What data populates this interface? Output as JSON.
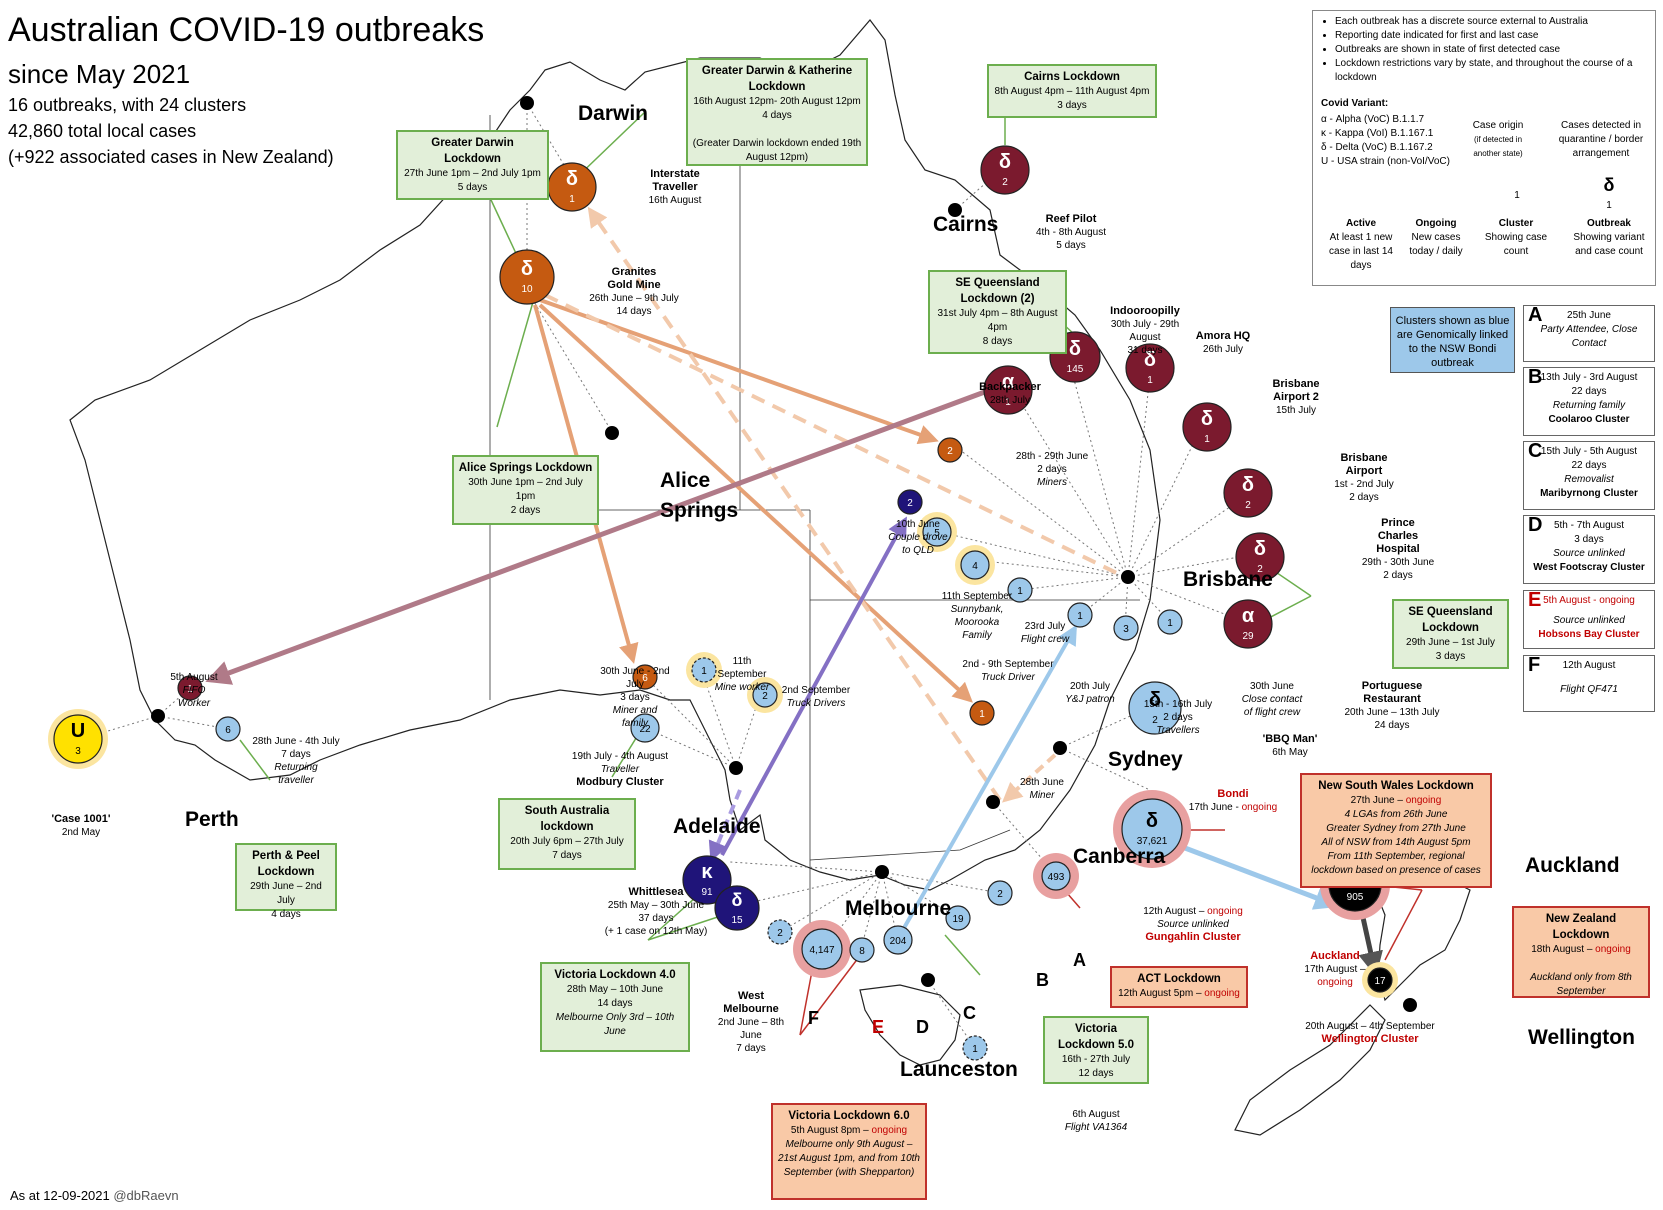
{
  "header": {
    "title_line1": "Australian COVID-19 outbreaks",
    "title_line2": "since May 2021",
    "stat1": "16 outbreaks, with 24 clusters",
    "stat2": "42,860 total local cases",
    "stat3": "(+922 associated cases in New Zealand)"
  },
  "footer": {
    "date": "As at 12-09-2021",
    "handle": "@dbRaevn"
  },
  "legend": {
    "bullets": [
      "Each outbreak has a discrete source external to Australia",
      "Reporting date indicated for first and last case",
      "Outbreaks are shown in state of first detected case",
      "Lockdown restrictions vary by state, and throughout the course of a lockdown"
    ],
    "variant_title": "Covid Variant:",
    "variants": [
      "α - Alpha (VoC) B.1.1.7",
      "κ - Kappa (VoI) B.1.167.1",
      "δ - Delta (VoC) B.1.167.2",
      "U - USA strain (non-VoI/VoC)"
    ],
    "case_origin": "Case origin",
    "case_origin_note": "(if detected in another state)",
    "quarantine": "Cases detected in quarantine / border arrangement",
    "active": "Active",
    "active_desc": "At least 1 new case in last 14 days",
    "ongoing": "Ongoing",
    "ongoing_desc": "New cases today / daily",
    "cluster": "Cluster",
    "cluster_desc": "Showing case count",
    "outbreak": "Outbreak",
    "outbreak_desc": "Showing variant and case count",
    "sample_cluster": "1",
    "sample_variant": "δ",
    "sample_count": "1"
  },
  "bluebox": "Clusters shown as blue are Genomically linked to the NSW Bondi outbreak",
  "sidecards": [
    {
      "letter": "A",
      "date": "25th June",
      "line2": "Party Attendee, Close Contact",
      "line3": ""
    },
    {
      "letter": "B",
      "date": "13th July - 3rd August",
      "line2": "22 days",
      "line3": "Returning family",
      "line4": "Coolaroo Cluster"
    },
    {
      "letter": "C",
      "date": "15th July - 5th August",
      "line2": "22 days",
      "line3": "Removalist",
      "line4": "Maribyrnong Cluster"
    },
    {
      "letter": "D",
      "date": "5th - 7th August",
      "line2": "3 days",
      "line3": "Source unlinked",
      "line4": "West Footscray Cluster"
    },
    {
      "letter": "E",
      "date": "5th August - ongoing",
      "line2": "",
      "line3": "Source unlinked",
      "line4": "Hobsons Bay Cluster"
    },
    {
      "letter": "F",
      "date": "12th August",
      "line2": "",
      "line3": "Flight QF471",
      "line4": ""
    }
  ],
  "cities": {
    "darwin": "Darwin",
    "cairns": "Cairns",
    "alice": "Alice Springs",
    "brisbane": "Brisbane",
    "sydney": "Sydney",
    "canberra": "Canberra",
    "adelaide": "Adelaide",
    "melbourne": "Melbourne",
    "launceston": "Launceston",
    "perth": "Perth",
    "auckland": "Auckland",
    "wellington": "Wellington"
  },
  "lockdowns": {
    "darwin1": {
      "title": "Greater Darwin Lockdown",
      "l1": "27th June 1pm – 2nd July 1pm",
      "l2": "5 days"
    },
    "darwin2": {
      "title": "Greater Darwin & Katherine Lockdown",
      "l1": "16th August 12pm- 20th August 12pm",
      "l2": "4 days",
      "l3": "(Greater Darwin lockdown ended 19th August 12pm)"
    },
    "cairns": {
      "title": "Cairns Lockdown",
      "l1": "8th August 4pm – 11th August 4pm",
      "l2": "3 days"
    },
    "seq2": {
      "title": "SE Queensland Lockdown (2)",
      "l1": "31st July 4pm – 8th August 4pm",
      "l2": "8 days"
    },
    "alice": {
      "title": "Alice Springs Lockdown",
      "l1": "30th June 1pm – 2nd July 1pm",
      "l2": "2 days"
    },
    "seq1": {
      "title": "SE Queensland Lockdown",
      "l1": "29th June – 1st July",
      "l2": "3 days"
    },
    "sa": {
      "title": "South Australia lockdown",
      "l1": "20th July 6pm – 27th July",
      "l2": "7 days"
    },
    "perth": {
      "title": "Perth & Peel Lockdown",
      "l1": "29th June – 2nd July",
      "l2": "4 days"
    },
    "vic4": {
      "title": "Victoria Lockdown 4.0",
      "l1": "28th May – 10th June",
      "l2": "14 days",
      "l3": "Melbourne Only 3rd – 10th June"
    },
    "vic5": {
      "title": "Victoria Lockdown 5.0",
      "l1": "16th - 27th July",
      "l2": "12 days"
    },
    "vic6": {
      "title": "Victoria Lockdown 6.0",
      "l1": "5th August 8pm – ",
      "l1b": "ongoing",
      "l2": "Melbourne only 9th August – 21st August 1pm, and from 10th September (with Shepparton)"
    },
    "nsw": {
      "title": "New South Wales Lockdown",
      "l1": "27th June – ",
      "l1b": "ongoing",
      "l2": "4 LGAs from 26th June",
      "l3": "Greater Sydney from 27th June",
      "l4": "All of NSW from 14th August 5pm",
      "l5": "From 11th September, regional lockdown based on presence of cases"
    },
    "act": {
      "title": "ACT Lockdown",
      "l1": "12th August 5pm – ",
      "l1b": "ongoing"
    },
    "nz": {
      "title": "New Zealand Lockdown",
      "l1": "18th August – ",
      "l1b": "ongoing",
      "l2": "Auckland only from 8th September"
    }
  },
  "labels": {
    "interstate": {
      "t1": "Interstate",
      "t2": "Traveller",
      "d": "16th August"
    },
    "granites": {
      "t1": "Granites",
      "t2": "Gold Mine",
      "d": "26th June – 9th July",
      "n": "14 days"
    },
    "reef": {
      "t": "Reef Pilot",
      "d": "4th - 8th August",
      "n": "5 days"
    },
    "indoor": {
      "t": "Indooroopilly",
      "d": "30th July - 29th August",
      "n": "31 days"
    },
    "amora": {
      "t": "Amora HQ",
      "d": "26th July"
    },
    "bne2": {
      "t1": "Brisbane",
      "t2": "Airport 2",
      "d": "15th July"
    },
    "bne1": {
      "t1": "Brisbane",
      "t2": "Airport",
      "d": "1st - 2nd July",
      "n": "2 days"
    },
    "pch": {
      "t1": "Prince",
      "t2": "Charles",
      "t3": "Hospital",
      "d": "29th - 30th June",
      "n": "2 days"
    },
    "port": {
      "t1": "Portuguese",
      "t2": "Restaurant",
      "d": "20th June – 13th July",
      "n": "24 days"
    },
    "backpacker": {
      "t": "Backpacker",
      "d": "28th July"
    },
    "miners2": {
      "d": "28th - 29th June",
      "n": "2 days",
      "t": "Miners"
    },
    "couple": {
      "d": "10th June",
      "t1": "Couple drove",
      "t2": "to QLD"
    },
    "sunny": {
      "d": "11th September",
      "t1": "Sunnybank,",
      "t2": "Moorooka",
      "t3": "Family"
    },
    "flightcrew": {
      "d": "23rd July",
      "t": "Flight crew"
    },
    "truck": {
      "d": "2nd - 9th September",
      "t": "Truck Driver"
    },
    "yj": {
      "d": "20th July",
      "t": "Y&J patron"
    },
    "travellers": {
      "d": "15th - 16th July",
      "n": "2 days",
      "t": "Travellers"
    },
    "closecontact": {
      "d": "30th June",
      "t1": "Close contact",
      "t2": "of flight crew"
    },
    "bbq": {
      "t": "'BBQ Man'",
      "d": "6th May"
    },
    "bondi": {
      "t": "Bondi",
      "d": "17th June - ",
      "db": "ongoing"
    },
    "sydminer": {
      "d": "28th June",
      "t": "Miner"
    },
    "gung": {
      "d": "12th August – ",
      "db": "ongoing",
      "t": "Source unlinked",
      "c": "Gungahlin Cluster"
    },
    "akl": {
      "t": "Auckland",
      "d": "17th August – ",
      "db": "ongoing"
    },
    "wlg": {
      "d": "20th August – 4th September",
      "c": "Wellington Cluster"
    },
    "mineworker": {
      "d": "11th September",
      "t": "Mine worker"
    },
    "truckdrivers": {
      "d": "2nd September",
      "t": "Truck Drivers"
    },
    "minerfam": {
      "d": "30th June - 2nd July",
      "n": "3 days",
      "t1": "Miner and",
      "t2": "family"
    },
    "modbury": {
      "d": "19th July - 4th August",
      "t": "Traveller",
      "c": "Modbury Cluster"
    },
    "fifo": {
      "d": "5th August",
      "t1": "FIFO",
      "t2": "Worker"
    },
    "perthrt": {
      "d": "28th June - 4th July",
      "n": "7 days",
      "t1": "Returning",
      "t2": "traveller"
    },
    "case1001": {
      "t": "'Case 1001'",
      "d": "2nd May"
    },
    "whittlesea": {
      "t": "Whittlesea",
      "d": "25th May – 30th June",
      "n": "37 days",
      "x": "(+ 1 case on 12th May)"
    },
    "westmelb": {
      "t1": "West",
      "t2": "Melbourne",
      "d": "2nd June – 8th June",
      "n": "7 days"
    },
    "va1364": {
      "d": "6th August",
      "t": "Flight VA1364"
    },
    "letters": {
      "a": "A",
      "b": "B",
      "c": "C",
      "d": "D",
      "e": "E",
      "f": "F"
    }
  },
  "outbreaks": [
    {
      "id": "darwin-interstate",
      "variant": "δ",
      "count": "1",
      "color": "#c55a11"
    },
    {
      "id": "granites",
      "variant": "δ",
      "count": "10",
      "color": "#c55a11"
    },
    {
      "id": "reef",
      "variant": "δ",
      "count": "2",
      "color": "#7b1a2e"
    },
    {
      "id": "indooroopilly",
      "variant": "δ",
      "count": "145",
      "color": "#7b1a2e"
    },
    {
      "id": "amora",
      "variant": "δ",
      "count": "1",
      "color": "#7b1a2e"
    },
    {
      "id": "bne2",
      "variant": "δ",
      "count": "1",
      "color": "#7b1a2e"
    },
    {
      "id": "bne1",
      "variant": "δ",
      "count": "2",
      "color": "#7b1a2e"
    },
    {
      "id": "pch",
      "variant": "δ",
      "count": "2",
      "color": "#7b1a2e"
    },
    {
      "id": "port",
      "variant": "α",
      "count": "29",
      "color": "#7b1a2e"
    },
    {
      "id": "backpacker",
      "variant": "α",
      "count": "1",
      "color": "#7b1a2e"
    },
    {
      "id": "bbq",
      "variant": "δ",
      "count": "2",
      "color": "#9dc8ea"
    },
    {
      "id": "bondi",
      "variant": "δ",
      "count": "37,621",
      "color": "#9dc8ea"
    },
    {
      "id": "auckland",
      "variant": "δ",
      "count": "905",
      "color": "#000000"
    },
    {
      "id": "whittlesea",
      "variant": "κ",
      "count": "91",
      "color": "#1f1479"
    },
    {
      "id": "westmelb",
      "variant": "δ",
      "count": "15",
      "color": "#1f1479"
    },
    {
      "id": "case1001",
      "variant": "U",
      "count": "3",
      "color": "#ffe100"
    }
  ],
  "clusters": [
    {
      "id": "miners2",
      "count": "2",
      "color": "#c55a11"
    },
    {
      "id": "couple",
      "count": "2",
      "color": "#1f1479"
    },
    {
      "id": "sunny",
      "count": "5",
      "color": "#9dc8ea"
    },
    {
      "id": "flightcrew",
      "count": "4",
      "color": "#9dc8ea"
    },
    {
      "id": "truck",
      "count": "1",
      "color": "#9dc8ea"
    },
    {
      "id": "yj",
      "count": "1",
      "color": "#9dc8ea"
    },
    {
      "id": "travellers",
      "count": "3",
      "color": "#9dc8ea"
    },
    {
      "id": "closecontact",
      "count": "1",
      "color": "#9dc8ea"
    },
    {
      "id": "sydminer",
      "count": "1",
      "color": "#c55a11"
    },
    {
      "id": "gungahlin",
      "count": "493",
      "color": "#9dc8ea"
    },
    {
      "id": "wellington",
      "count": "17",
      "color": "#000000"
    },
    {
      "id": "mineworker",
      "count": "1",
      "color": "#9dc8ea"
    },
    {
      "id": "truckdrivers",
      "count": "2",
      "color": "#9dc8ea"
    },
    {
      "id": "minerfam",
      "count": "6",
      "color": "#c55a11"
    },
    {
      "id": "modbury",
      "count": "22",
      "color": "#9dc8ea"
    },
    {
      "id": "fifo",
      "count": "1",
      "color": "#7b1a2e"
    },
    {
      "id": "perthrt",
      "count": "6",
      "color": "#9dc8ea"
    },
    {
      "id": "hobsons",
      "count": "4,147",
      "color": "#9dc8ea"
    },
    {
      "id": "westfootscray",
      "count": "8",
      "color": "#9dc8ea"
    },
    {
      "id": "maribyrnong",
      "count": "204",
      "color": "#9dc8ea"
    },
    {
      "id": "coolaroo",
      "count": "19",
      "color": "#9dc8ea"
    },
    {
      "id": "partyattendee",
      "count": "2",
      "color": "#9dc8ea"
    },
    {
      "id": "qf471",
      "count": "2",
      "color": "#9dc8ea"
    },
    {
      "id": "va1364",
      "count": "1",
      "color": "#9dc8ea"
    }
  ],
  "colors": {
    "land_stroke": "#222222",
    "active_ring": "#fbe5a0",
    "ongoing_ring": "#e8a0a0",
    "box_green": "#e2efd9",
    "box_red": "#f9c9a7",
    "blue": "#9dc8ea"
  }
}
